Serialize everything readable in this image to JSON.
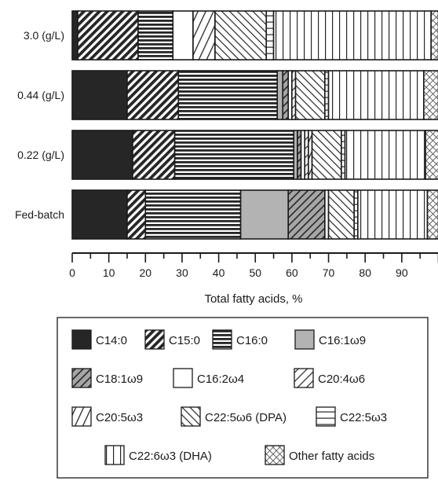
{
  "chart_data": {
    "type": "bar",
    "orientation": "horizontal",
    "stacked": true,
    "title": "",
    "xlabel": "Total fatty acids, %",
    "ylabel": "",
    "xlim": [
      0,
      100
    ],
    "x_ticks": [
      "0",
      "10",
      "20",
      "30",
      "40",
      "50",
      "60",
      "70",
      "80",
      "90"
    ],
    "grid": false,
    "legend_position": "bottom",
    "categories": [
      "3.0 (g/L)",
      "0.44 (g/L)",
      "0.22 (g/L)",
      "Fed-batch"
    ],
    "series": [
      {
        "name": "C14:0",
        "pattern": "solid",
        "values": [
          1.5,
          15,
          16.5,
          15
        ]
      },
      {
        "name": "C15:0",
        "pattern": "diag-dense",
        "values": [
          16.5,
          14,
          11.5,
          5
        ]
      },
      {
        "name": "C16:0",
        "pattern": "horizontal-dense",
        "values": [
          9.5,
          27,
          32.5,
          26
        ]
      },
      {
        "name": "C16:1ω9",
        "pattern": "gray",
        "values": [
          0,
          1.5,
          1,
          13
        ]
      },
      {
        "name": "C18:1ω9",
        "pattern": "gray-diag",
        "values": [
          0,
          1.5,
          1,
          10
        ]
      },
      {
        "name": "C16:2ω4",
        "pattern": "white",
        "values": [
          5.5,
          1,
          1,
          1
        ]
      },
      {
        "name": "C20:4ω6",
        "pattern": "diag-sparse",
        "values": [
          0,
          1,
          1,
          0
        ]
      },
      {
        "name": "C20:5ω3",
        "pattern": "diag-wide",
        "values": [
          6,
          0,
          1,
          0
        ]
      },
      {
        "name": "C22:5ω6 (DPA)",
        "pattern": "back-diag",
        "values": [
          14,
          8,
          8,
          7
        ]
      },
      {
        "name": "C22:5ω3",
        "pattern": "horizontal",
        "values": [
          2,
          1,
          1,
          1
        ]
      },
      {
        "name": "C22:6ω3 (DHA)",
        "pattern": "vertical",
        "values": [
          43,
          26,
          22,
          19
        ]
      },
      {
        "name": "Other fatty acids",
        "pattern": "crosshatch",
        "values": [
          2,
          4,
          4,
          3
        ]
      }
    ]
  },
  "colors": {
    "ink": "#1a1a1a",
    "dark_fill": "#262626",
    "gray_fill": "#b3b3b3",
    "hatch_gray": "#a6a6a6",
    "background": "#ffffff"
  }
}
